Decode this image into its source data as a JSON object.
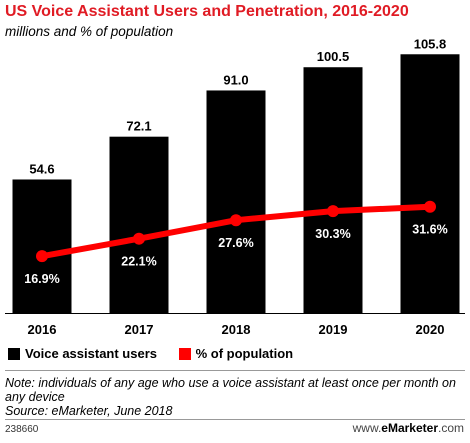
{
  "header": {
    "title": "US Voice Assistant Users and Penetration, 2016-2020",
    "subtitle": "millions and % of population"
  },
  "legend": {
    "bars_label": "Voice assistant users",
    "line_label": "% of population"
  },
  "note": {
    "text": "Note: individuals of any age who use a voice assistant at least once per month on any device",
    "source": "Source: eMarketer, June 2018"
  },
  "footer": {
    "id": "238660",
    "brand_prefix": "www.",
    "brand_name": "eMarketer",
    "brand_suffix": ".com"
  },
  "colors": {
    "bar": "#000000",
    "line": "#ff0000",
    "title": "#e01b24"
  },
  "chart_data": {
    "type": "bar",
    "categories": [
      "2016",
      "2017",
      "2018",
      "2019",
      "2020"
    ],
    "series": [
      {
        "name": "Voice assistant users",
        "type": "bar",
        "values": [
          54.6,
          72.1,
          91.0,
          100.5,
          105.8
        ],
        "labels": [
          "54.6",
          "72.1",
          "91.0",
          "100.5",
          "105.8"
        ]
      },
      {
        "name": "% of population",
        "type": "line",
        "values": [
          16.9,
          22.1,
          27.6,
          30.3,
          31.6
        ],
        "labels": [
          "16.9%",
          "22.1%",
          "27.6%",
          "30.3%",
          "31.6%"
        ]
      }
    ],
    "title": "US Voice Assistant Users and Penetration, 2016-2020",
    "xlabel": "",
    "ylabel": "",
    "ylim_bars": [
      0,
      110
    ],
    "ylim_line": [
      0,
      80
    ],
    "grid": false,
    "legend": "bottom-left"
  }
}
